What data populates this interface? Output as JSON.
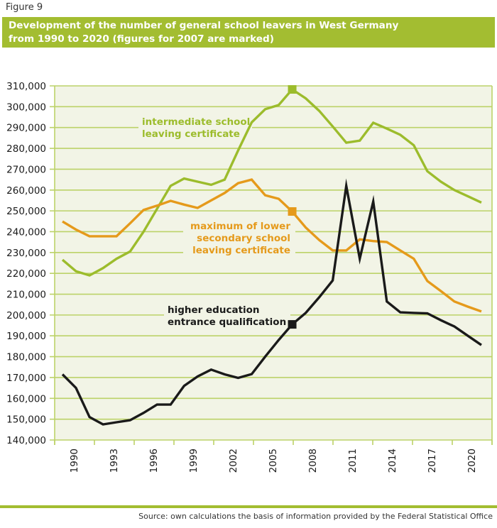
{
  "figure_label": "Figure 9",
  "title_lines": [
    "Development of the number of general school leavers in West Germany",
    "from 1990 to 2020 (figures for 2007 are marked)"
  ],
  "source": "Source: own calculations the basis of information provided by the Federal Statistical Office",
  "colors": {
    "brand_green": "#a3bd31",
    "plot_bg": "#f2f4e6",
    "grid": "#bcd268",
    "intermediate": "#9cbc2c",
    "lower_secondary": "#e59a1b",
    "higher_education": "#1a1a1a"
  },
  "chart_data": {
    "type": "line",
    "title": "Development of the number of general school leavers in West Germany from 1990 to 2020 (figures for 2007 are marked)",
    "xlabel": "",
    "ylabel": "",
    "ylim": [
      140000,
      310000
    ],
    "yticks": [
      140000,
      150000,
      160000,
      170000,
      180000,
      190000,
      200000,
      210000,
      220000,
      230000,
      240000,
      250000,
      260000,
      270000,
      280000,
      290000,
      300000,
      310000
    ],
    "ytick_labels": [
      "140,000",
      "150,000",
      "160,000",
      "170,000",
      "180,000",
      "190,000",
      "200,000",
      "210,000",
      "220,000",
      "230,000",
      "240,000",
      "250,000",
      "260,000",
      "270,000",
      "280,000",
      "290,000",
      "300,000",
      "310,000"
    ],
    "xtick_labels": [
      "1990",
      "1993",
      "1996",
      "1999",
      "2002",
      "2005",
      "2008",
      "2011",
      "2014",
      "2017",
      "2020"
    ],
    "grid": true,
    "legend": "inline-labels",
    "marked_year": 2007,
    "x": [
      1990,
      1991,
      1992,
      1993,
      1994,
      1995,
      1996,
      1997,
      1998,
      1999,
      2000,
      2001,
      2002,
      2003,
      2004,
      2005,
      2006,
      2007,
      2008,
      2009,
      2010,
      2011,
      2012,
      2013,
      2014,
      2015,
      2016,
      2017,
      2018,
      2019,
      2020,
      2021
    ],
    "series": [
      {
        "name": "intermediate school leaving certificate",
        "label_lines": [
          "intermediate school",
          "leaving certificate"
        ],
        "color": "#9cbc2c",
        "values": [
          226500,
          221000,
          219000,
          222500,
          227000,
          230500,
          240000,
          251000,
          262000,
          265500,
          264000,
          262500,
          265000,
          279000,
          292500,
          298800,
          300800,
          308300,
          304000,
          298000,
          290500,
          282700,
          283700,
          292300,
          289500,
          286500,
          281500,
          269000,
          264000,
          260000,
          257000,
          254000
        ]
      },
      {
        "name": "maximum of lower secondary school leaving certificate",
        "label_lines": [
          "maximum of lower",
          "secondary school",
          "leaving certificate"
        ],
        "color": "#e59a1b",
        "values": [
          244900,
          241000,
          237800,
          237800,
          237800,
          244000,
          250400,
          252500,
          254800,
          253000,
          251400,
          255000,
          258600,
          263300,
          265000,
          257500,
          255800,
          249700,
          242000,
          236000,
          231000,
          231000,
          236300,
          235500,
          235000,
          231000,
          227000,
          216300,
          211500,
          206500,
          204000,
          201700
        ]
      },
      {
        "name": "higher education entrance qualification",
        "label_lines": [
          "higher education",
          "entrance qualification"
        ],
        "color": "#1a1a1a",
        "values": [
          171500,
          165000,
          151000,
          147500,
          148500,
          149500,
          153000,
          157000,
          157000,
          166000,
          170500,
          173800,
          171500,
          169800,
          171600,
          180000,
          188000,
          195500,
          201000,
          208500,
          216600,
          262000,
          227000,
          254500,
          206500,
          201300,
          201000,
          200800,
          197500,
          194500,
          190000,
          185600
        ]
      }
    ]
  }
}
